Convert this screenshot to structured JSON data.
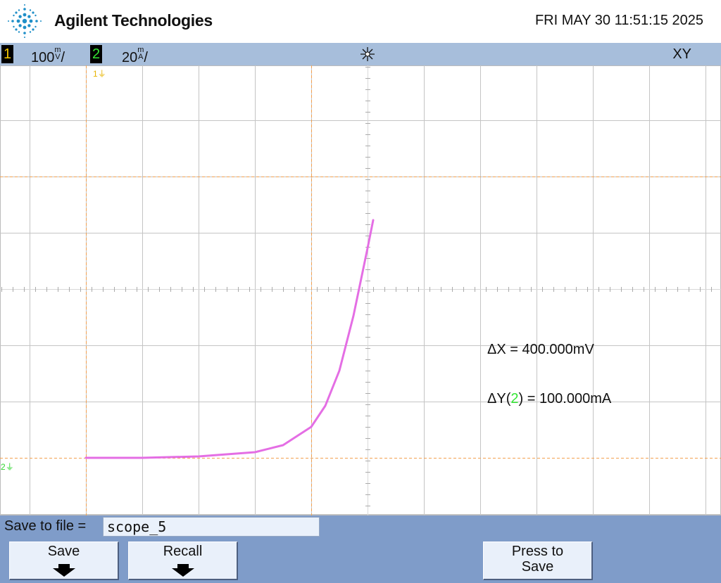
{
  "header": {
    "brand": "Agilent Technologies",
    "datetime": "FRI MAY 30 11:51:15 2025"
  },
  "status_bar": {
    "ch1_label": "1",
    "ch1_scale": "100",
    "ch1_unit_top": "V",
    "ch2_label": "2",
    "ch2_scale": "20",
    "ch2_unit_top": "A",
    "mode": "XY"
  },
  "measurements": {
    "delta_x": "ΔX = 400.000mV",
    "delta_y_prefix": "ΔY(",
    "delta_y_channel": "2",
    "delta_y_suffix": ") = 100.000mA"
  },
  "markers": {
    "ch1": "1",
    "ch2": "2"
  },
  "softkeys": {
    "save_to_file_label": "Save to file =",
    "filename": "scope_5",
    "save": "Save",
    "recall": "Recall",
    "press_to_save_line1": "Press to",
    "press_to_save_line2": "Save"
  },
  "colors": {
    "ch1": "#f5c800",
    "ch2": "#35e635",
    "trace": "#e46ee4",
    "cursor": "#f2a050",
    "status_bg": "#a7bedb",
    "softkey_bg": "#7f9cc9"
  },
  "chart_data": {
    "type": "scatter",
    "xlabel": "",
    "ylabel": "",
    "x_units": "V",
    "y_units": "A",
    "x_scale_per_div": 0.1,
    "y_scale_per_div": 0.02,
    "xlim": [
      -0.65,
      0.6
    ],
    "ylim": [
      -0.034,
      0.123
    ],
    "grid": true,
    "cursor_x": [
      -0.5,
      -0.1
    ],
    "cursor_y": [
      0.0,
      0.1
    ],
    "series": [
      {
        "x": [
          -0.5,
          -0.4,
          -0.3,
          -0.2,
          -0.15,
          -0.1,
          -0.075,
          -0.05,
          -0.025,
          0.0,
          0.01
        ],
        "y": [
          0.0,
          0.0,
          0.0005,
          0.002,
          0.0045,
          0.011,
          0.0185,
          0.031,
          0.0505,
          0.0745,
          0.0845
        ]
      }
    ]
  }
}
